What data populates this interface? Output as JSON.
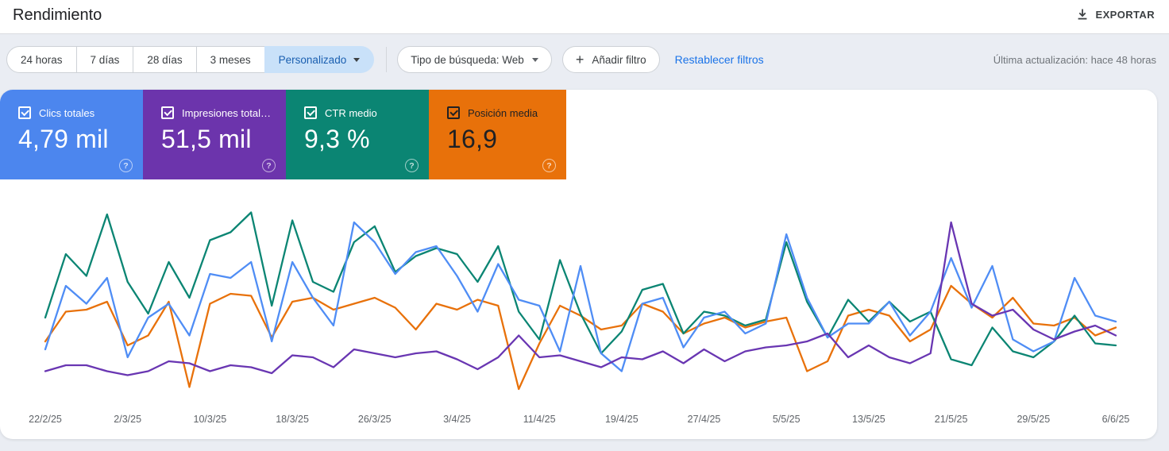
{
  "header": {
    "title": "Rendimiento",
    "export_label": "EXPORTAR"
  },
  "filters": {
    "ranges": [
      "24 horas",
      "7 días",
      "28 días",
      "3 meses"
    ],
    "custom_range_label": "Personalizado",
    "search_type_label": "Tipo de búsqueda: Web",
    "add_filter_label": "Añadir filtro",
    "reset_filters_label": "Restablecer filtros",
    "last_updated": "Última actualización: hace 48 horas"
  },
  "metrics": [
    {
      "label": "Clics totales",
      "value": "4,79 mil",
      "color": "#4c86ee",
      "checked": true,
      "dark_text": false
    },
    {
      "label": "Impresiones total…",
      "value": "51,5 mil",
      "color": "#6c34ac",
      "checked": true,
      "dark_text": false
    },
    {
      "label": "CTR medio",
      "value": "9,3 %",
      "color": "#0b8573",
      "checked": true,
      "dark_text": false
    },
    {
      "label": "Posición media",
      "value": "16,9",
      "color": "#e8710a",
      "checked": true,
      "dark_text": true
    }
  ],
  "chart_data": {
    "type": "line",
    "title": "",
    "xlabel": "",
    "ylabel": "",
    "grid": false,
    "legend_position": "metric-cards-above-chart",
    "y_axis_shown": false,
    "value_scale": "values are percent of plot height (0=bottom, 100=top); each series is independently normalized in the UI, no y-axis ticks are displayed",
    "x_range": [
      "22/2/25",
      "6/6/25"
    ],
    "sampling": "one point every 2 days, 53 points per series",
    "x_labels": [
      "22/2/25",
      "2/3/25",
      "10/3/25",
      "18/3/25",
      "26/3/25",
      "3/4/25",
      "11/4/25",
      "19/4/25",
      "27/4/25",
      "5/5/25",
      "13/5/25",
      "21/5/25",
      "29/5/25",
      "6/6/25"
    ],
    "draw_order": [
      3,
      2,
      0,
      1
    ],
    "series": [
      {
        "id": "clics",
        "name": "Clics totales",
        "color": "#4f8df5",
        "values": [
          26,
          58,
          49,
          62,
          22,
          42,
          49,
          33,
          64,
          62,
          70,
          30,
          70,
          52,
          38,
          90,
          80,
          64,
          75,
          78,
          63,
          45,
          69,
          51,
          48,
          25,
          68,
          24,
          15,
          49,
          52,
          27,
          42,
          45,
          34,
          39,
          84,
          52,
          32,
          39,
          39,
          50,
          33,
          45,
          72,
          47,
          68,
          31,
          25,
          30,
          62,
          43,
          40
        ]
      },
      {
        "id": "impresiones",
        "name": "Impresiones total…",
        "color": "#6936b2",
        "values": [
          15,
          18,
          18,
          15,
          13,
          15,
          20,
          19,
          15,
          18,
          17,
          14,
          23,
          22,
          17,
          26,
          24,
          22,
          24,
          25,
          21,
          16,
          22,
          33,
          22,
          23,
          20,
          17,
          22,
          21,
          25,
          19,
          26,
          20,
          25,
          27,
          28,
          30,
          34,
          22,
          28,
          22,
          19,
          24,
          90,
          49,
          43,
          46,
          36,
          31,
          35,
          38,
          33
        ]
      },
      {
        "id": "ctr",
        "name": "CTR medio",
        "color": "#0b8573",
        "values": [
          42,
          74,
          63,
          94,
          60,
          44,
          70,
          52,
          81,
          85,
          95,
          48,
          91,
          60,
          55,
          80,
          88,
          65,
          73,
          77,
          74,
          60,
          78,
          45,
          31,
          71,
          44,
          24,
          35,
          56,
          59,
          34,
          45,
          43,
          38,
          41,
          80,
          50,
          32,
          51,
          40,
          50,
          40,
          45,
          21,
          18,
          37,
          25,
          22,
          30,
          43,
          29,
          28
        ]
      },
      {
        "id": "posicion",
        "name": "Posición media",
        "color": "#e8710a",
        "values": [
          30,
          45,
          46,
          50,
          28,
          33,
          50,
          7,
          49,
          54,
          53,
          32,
          50,
          52,
          46,
          49,
          52,
          47,
          36,
          49,
          46,
          51,
          48,
          6,
          29,
          48,
          43,
          36,
          38,
          49,
          45,
          34,
          39,
          42,
          37,
          40,
          42,
          15,
          20,
          43,
          46,
          43,
          30,
          36,
          58,
          49,
          42,
          52,
          39,
          38,
          42,
          33,
          37
        ]
      }
    ]
  }
}
